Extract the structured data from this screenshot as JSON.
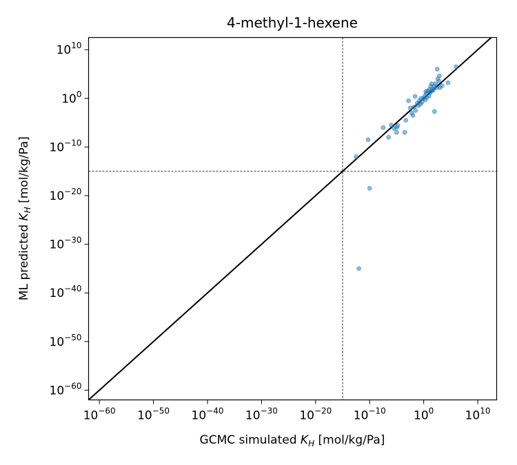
{
  "chart_data": {
    "type": "scatter",
    "title": "4-methyl-1-hexene",
    "xlabel": {
      "prefix": "GCMC simulated ",
      "sym": "K",
      "sub": "H",
      "suffix": " [mol/kg/Pa]"
    },
    "ylabel": {
      "prefix": "ML predicted ",
      "sym": "K",
      "sub": "H",
      "suffix": " [mol/kg/Pa]"
    },
    "scale": "log",
    "xlim_exp": [
      -62,
      13.5
    ],
    "ylim_exp": [
      -62,
      12.5
    ],
    "x_ticks": [
      {
        "base": "10",
        "exp": "−60",
        "v": -60
      },
      {
        "base": "10",
        "exp": "−50",
        "v": -50
      },
      {
        "base": "10",
        "exp": "−40",
        "v": -40
      },
      {
        "base": "10",
        "exp": "−30",
        "v": -30
      },
      {
        "base": "10",
        "exp": "−20",
        "v": -20
      },
      {
        "base": "10",
        "exp": "−10",
        "v": -10
      },
      {
        "base": "10",
        "exp": "0",
        "v": 0
      },
      {
        "base": "10",
        "exp": "10",
        "v": 10
      }
    ],
    "y_ticks": [
      {
        "base": "10",
        "exp": "−60",
        "v": -60
      },
      {
        "base": "10",
        "exp": "−50",
        "v": -50
      },
      {
        "base": "10",
        "exp": "−40",
        "v": -40
      },
      {
        "base": "10",
        "exp": "−30",
        "v": -30
      },
      {
        "base": "10",
        "exp": "−20",
        "v": -20
      },
      {
        "base": "10",
        "exp": "−10",
        "v": -10
      },
      {
        "base": "10",
        "exp": "0",
        "v": 0
      },
      {
        "base": "10",
        "exp": "10",
        "v": 10
      }
    ],
    "threshold_exp": {
      "x": -15,
      "y": -15
    },
    "parity_line": true,
    "grid": false,
    "colors": {
      "points": "#1f77b4",
      "parity": "#000000",
      "threshold": "#000000"
    },
    "points_log10": [
      [
        -12.5,
        -12
      ],
      [
        -10.3,
        -8.5
      ],
      [
        -7.5,
        -6
      ],
      [
        -6.5,
        -8
      ],
      [
        -6,
        -5.5
      ],
      [
        -5.5,
        -6.2
      ],
      [
        -5,
        -6
      ],
      [
        -5,
        -7
      ],
      [
        -4.8,
        -5.6
      ],
      [
        -3.5,
        -7
      ],
      [
        -3.3,
        -4.5
      ],
      [
        -2.5,
        -2
      ],
      [
        -2.2,
        -3
      ],
      [
        -2,
        -3.5
      ],
      [
        -1.8,
        -1.8
      ],
      [
        -1.5,
        -2.5
      ],
      [
        -1.2,
        -1
      ],
      [
        -1,
        -1.5
      ],
      [
        -0.8,
        -0.5
      ],
      [
        -0.6,
        -1.2
      ],
      [
        -0.5,
        0
      ],
      [
        -0.3,
        -0.8
      ],
      [
        0,
        0
      ],
      [
        0.2,
        0.5
      ],
      [
        0.3,
        -0.3
      ],
      [
        0.5,
        1
      ],
      [
        0.6,
        0.2
      ],
      [
        0.8,
        1.5
      ],
      [
        1,
        0.5
      ],
      [
        1,
        1.8
      ],
      [
        1.2,
        1.2
      ],
      [
        1.3,
        2.5
      ],
      [
        1.5,
        1.5
      ],
      [
        1.5,
        3
      ],
      [
        1.6,
        2
      ],
      [
        1.8,
        1.7
      ],
      [
        2,
        -2.7
      ],
      [
        2,
        2.5
      ],
      [
        2.2,
        3
      ],
      [
        2.4,
        2.2
      ],
      [
        2.5,
        6
      ],
      [
        2.6,
        4
      ],
      [
        2.8,
        3.5
      ],
      [
        3,
        2.2
      ],
      [
        4.5,
        3.2
      ],
      [
        6,
        6.5
      ],
      [
        -2.8,
        -0.5
      ],
      [
        -1.6,
        0.4
      ],
      [
        0.4,
        1.4
      ],
      [
        2.9,
        4.6
      ],
      [
        3.4,
        2.6
      ],
      [
        -10,
        -18.5
      ],
      [
        -12,
        -35
      ]
    ]
  }
}
